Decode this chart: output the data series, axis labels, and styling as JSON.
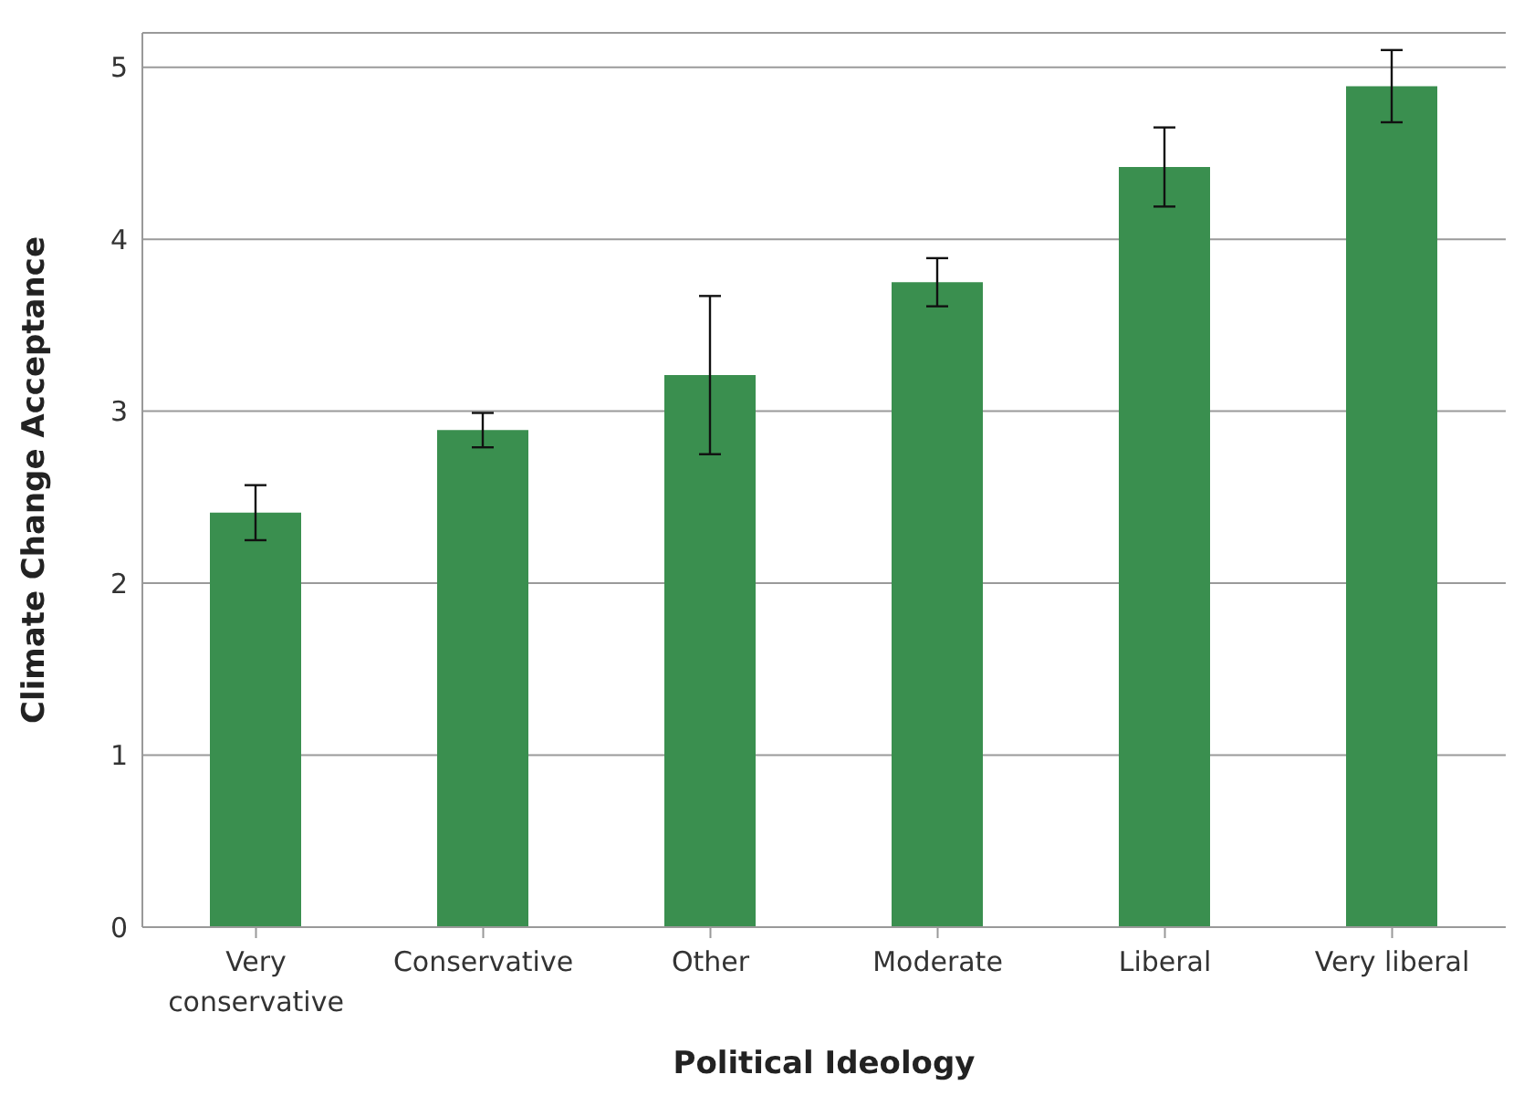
{
  "chart_data": {
    "type": "bar",
    "xlabel": "Political Ideology",
    "ylabel": "Climate Change Acceptance",
    "categories": [
      "Very conservative",
      "Conservative",
      "Other",
      "Moderate",
      "Liberal",
      "Very liberal"
    ],
    "values": [
      2.41,
      2.89,
      3.21,
      3.75,
      4.42,
      4.89
    ],
    "errors": [
      0.16,
      0.1,
      0.46,
      0.14,
      0.23,
      0.21
    ],
    "color": "#3a8f4f",
    "ylim": [
      0,
      5.2
    ],
    "yticks": [
      0,
      1,
      2,
      3,
      4,
      5
    ],
    "grid": "y"
  }
}
